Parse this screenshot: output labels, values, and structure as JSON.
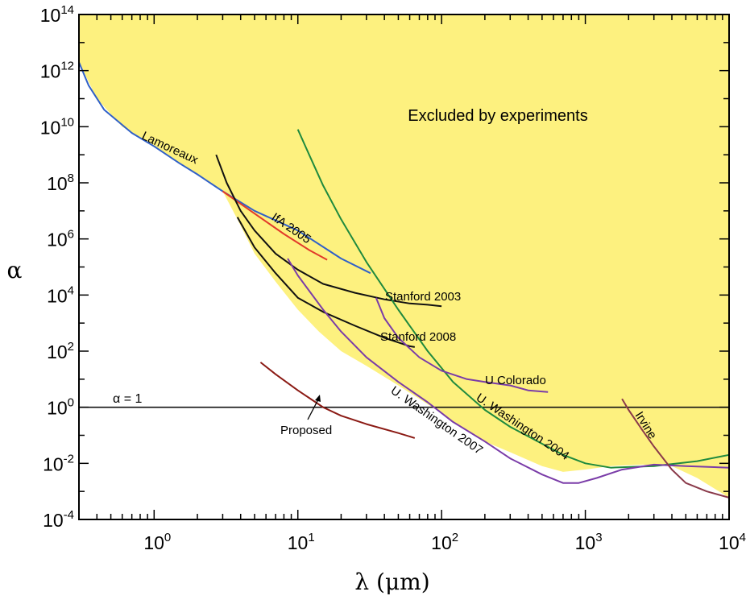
{
  "chart_data": {
    "type": "line",
    "xlabel": "λ (μm)",
    "ylabel": "α",
    "xscale": "log",
    "yscale": "log",
    "xlim": [
      0.3,
      10000
    ],
    "ylim": [
      0.0001,
      100000000000000
    ],
    "x_tick_labels": [
      {
        "value": 1,
        "base": "10",
        "exp": "0"
      },
      {
        "value": 10,
        "base": "10",
        "exp": "1"
      },
      {
        "value": 100,
        "base": "10",
        "exp": "2"
      },
      {
        "value": 1000,
        "base": "10",
        "exp": "3"
      },
      {
        "value": 10000,
        "base": "10",
        "exp": "4"
      }
    ],
    "y_tick_labels": [
      {
        "value": 0.0001,
        "base": "10",
        "exp": "-4"
      },
      {
        "value": 0.01,
        "base": "10",
        "exp": "-2"
      },
      {
        "value": 1,
        "base": "10",
        "exp": "0"
      },
      {
        "value": 100,
        "base": "10",
        "exp": "2"
      },
      {
        "value": 10000,
        "base": "10",
        "exp": "4"
      },
      {
        "value": 1000000,
        "base": "10",
        "exp": "6"
      },
      {
        "value": 100000000,
        "base": "10",
        "exp": "8"
      },
      {
        "value": 10000000000,
        "base": "10",
        "exp": "10"
      },
      {
        "value": 1000000000000,
        "base": "10",
        "exp": "12"
      },
      {
        "value": 100000000000000,
        "base": "10",
        "exp": "14"
      }
    ],
    "region_label": "Excluded by experiments",
    "region_color": "#fdf17f",
    "excluded_boundary": [
      [
        0.3,
        2000000000000
      ],
      [
        0.4,
        100000000000
      ],
      [
        0.6,
        10000000000
      ],
      [
        1,
        2000000000
      ],
      [
        2,
        200000000
      ],
      [
        3,
        50000000
      ],
      [
        3.8,
        5000000
      ],
      [
        5,
        300000
      ],
      [
        7,
        30000
      ],
      [
        10,
        3000
      ],
      [
        14,
        500
      ],
      [
        20,
        100
      ],
      [
        30,
        30
      ],
      [
        50,
        6
      ],
      [
        70,
        2
      ],
      [
        100,
        0.6
      ],
      [
        150,
        0.15
      ],
      [
        200,
        0.06
      ],
      [
        300,
        0.025
      ],
      [
        500,
        0.008
      ],
      [
        700,
        0.005
      ],
      [
        1000,
        0.006
      ],
      [
        1500,
        0.008
      ],
      [
        2500,
        0.009
      ],
      [
        4000,
        0.008
      ],
      [
        6000,
        0.003
      ],
      [
        10000,
        0.0006
      ]
    ],
    "reference_line": {
      "label": "α = 1",
      "y": 1
    },
    "series": [
      {
        "name": "Lamoreaux",
        "color": "#3060c8",
        "points": [
          [
            0.3,
            2000000000000
          ],
          [
            0.35,
            300000000000
          ],
          [
            0.45,
            40000000000
          ],
          [
            0.7,
            6000000000
          ],
          [
            1,
            2000000000
          ],
          [
            1.5,
            500000000
          ],
          [
            2,
            200000000
          ],
          [
            3,
            50000000
          ],
          [
            5,
            10000000
          ],
          [
            10,
            2000000
          ],
          [
            20,
            200000
          ],
          [
            32,
            60000
          ]
        ]
      },
      {
        "name": "IfA 2005",
        "color": "#e23a2a",
        "points": [
          [
            3,
            50000000
          ],
          [
            5,
            8000000
          ],
          [
            8,
            1500000
          ],
          [
            12,
            400000
          ],
          [
            16,
            180000
          ]
        ]
      },
      {
        "name": "Stanford 2003",
        "color": "#111111",
        "points": [
          [
            2.7,
            1000000000
          ],
          [
            3.2,
            100000000
          ],
          [
            4,
            10000000
          ],
          [
            5,
            2000000
          ],
          [
            7,
            300000
          ],
          [
            10,
            80000
          ],
          [
            15,
            25000
          ],
          [
            25,
            12000
          ],
          [
            40,
            7000
          ],
          [
            60,
            5000
          ],
          [
            80,
            4500
          ],
          [
            100,
            4000
          ]
        ]
      },
      {
        "name": "Stanford 2008",
        "color": "#111111",
        "points": [
          [
            3.8,
            6000000
          ],
          [
            5,
            500000
          ],
          [
            7,
            60000
          ],
          [
            10,
            8000
          ],
          [
            15,
            2500
          ],
          [
            25,
            800
          ],
          [
            40,
            300
          ],
          [
            60,
            150
          ],
          [
            65,
            140
          ]
        ]
      },
      {
        "name": "U. Washington 2004",
        "color": "#1f8a3e",
        "points": [
          [
            10,
            8000000000
          ],
          [
            12,
            1000000000
          ],
          [
            15,
            80000000
          ],
          [
            20,
            5000000
          ],
          [
            30,
            150000
          ],
          [
            50,
            3000
          ],
          [
            80,
            100
          ],
          [
            120,
            8
          ],
          [
            200,
            0.8
          ],
          [
            300,
            0.2
          ],
          [
            500,
            0.05
          ],
          [
            700,
            0.02
          ],
          [
            1000,
            0.01
          ],
          [
            1500,
            0.007
          ],
          [
            3000,
            0.008
          ],
          [
            6000,
            0.012
          ],
          [
            10000,
            0.02
          ]
        ]
      },
      {
        "name": "U. Washington 2007",
        "color": "#7a3ca8",
        "points": [
          [
            8.5,
            200000
          ],
          [
            10,
            50000
          ],
          [
            15,
            3000
          ],
          [
            20,
            500
          ],
          [
            30,
            60
          ],
          [
            50,
            8
          ],
          [
            80,
            1.5
          ],
          [
            120,
            0.3
          ],
          [
            200,
            0.06
          ],
          [
            300,
            0.015
          ],
          [
            500,
            0.004
          ],
          [
            700,
            0.002
          ],
          [
            900,
            0.002
          ],
          [
            1200,
            0.003
          ],
          [
            1800,
            0.006
          ],
          [
            3000,
            0.009
          ],
          [
            5000,
            0.008
          ],
          [
            10000,
            0.007
          ]
        ]
      },
      {
        "name": "U Colorado",
        "color": "#7a3ca8",
        "points": [
          [
            35,
            8000
          ],
          [
            40,
            1500
          ],
          [
            50,
            300
          ],
          [
            70,
            60
          ],
          [
            100,
            20
          ],
          [
            150,
            10
          ],
          [
            200,
            8
          ],
          [
            300,
            6
          ],
          [
            400,
            4
          ],
          [
            550,
            3.5
          ]
        ]
      },
      {
        "name": "Irvine",
        "color": "#8a3a4a",
        "points": [
          [
            1800,
            2
          ],
          [
            2000,
            0.8
          ],
          [
            2500,
            0.15
          ],
          [
            3000,
            0.04
          ],
          [
            4000,
            0.006
          ],
          [
            5000,
            0.002
          ],
          [
            7000,
            0.001
          ],
          [
            10000,
            0.0006
          ]
        ]
      },
      {
        "name": "Proposed",
        "color": "#8b1a14",
        "points": [
          [
            5.5,
            40
          ],
          [
            7,
            15
          ],
          [
            10,
            4
          ],
          [
            15,
            1
          ],
          [
            20,
            0.5
          ],
          [
            30,
            0.25
          ],
          [
            50,
            0.12
          ],
          [
            65,
            0.08
          ]
        ]
      }
    ],
    "annotations": {
      "region": "Excluded by experiments",
      "reference": "α = 1",
      "proposed_arrow": "Proposed"
    },
    "grid": false,
    "legend": "none"
  }
}
